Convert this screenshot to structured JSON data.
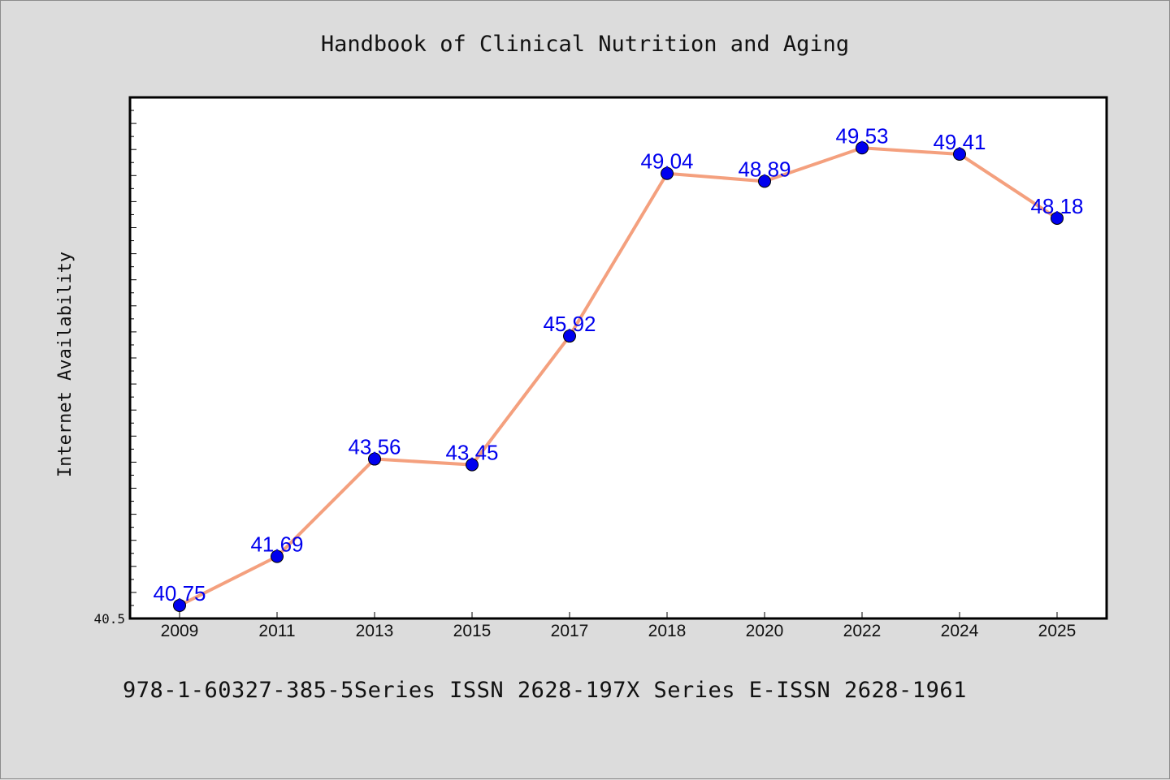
{
  "chart_data": {
    "type": "line",
    "title": "Handbook of Clinical Nutrition and Aging",
    "xlabel": "",
    "ylabel": "Internet Availability",
    "categories": [
      "2009",
      "2011",
      "2013",
      "2015",
      "2017",
      "2018",
      "2020",
      "2022",
      "2024",
      "2025"
    ],
    "series": [
      {
        "values": [
          40.75,
          41.69,
          43.56,
          43.45,
          45.92,
          49.04,
          48.89,
          49.53,
          49.41,
          48.18
        ]
      }
    ],
    "y_tick_labels": [
      "40.5"
    ],
    "ylim": [
      40.5,
      50.5
    ],
    "grid": false,
    "data_labels": true,
    "colors": {
      "line": "#f4a07e",
      "marker": "#0000ee",
      "label": "#0000ee",
      "background": "#dcdcdc",
      "plot_bg": "#ffffff"
    }
  },
  "footer": {
    "text": "978-1-60327-385-5Series ISSN 2628-197X Series E-ISSN 2628-1961"
  }
}
